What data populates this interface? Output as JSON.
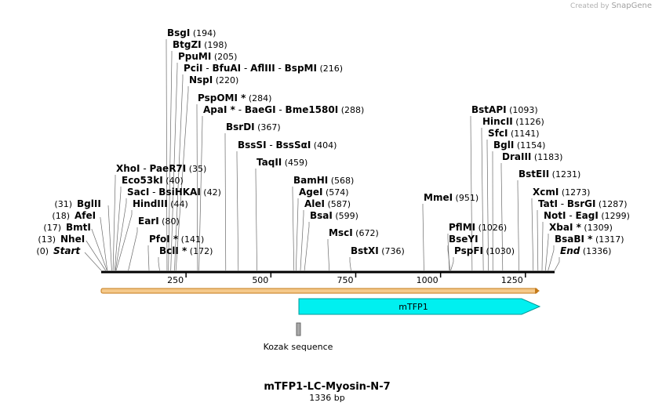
{
  "credit": {
    "prefix": "Created by",
    "brand": "SnapGene"
  },
  "title": "mTFP1-LC-Myosin-N-7",
  "length_label": "1336 bp",
  "total_bp": 1336,
  "ruler": {
    "ticks": [
      250,
      500,
      750,
      1000,
      1250
    ],
    "tick_labels": [
      "250",
      "500",
      "750",
      "1000",
      "1250"
    ]
  },
  "features": {
    "mtfp1": {
      "label": "mTFP1",
      "start": 587,
      "end": 1306
    },
    "kozak": {
      "label": "Kozak sequence",
      "start": 578,
      "end": 587
    }
  },
  "colors": {
    "backbone": "#000000",
    "ori_band": "#f5c98a",
    "ori_edge": "#c47a1a",
    "mtfp1_fill": "#00f0f0",
    "mtfp1_edge": "#009999",
    "kozak_fill": "#a8a8a8"
  },
  "sites_left": [
    {
      "name": "Start",
      "pos_label": "(0)",
      "pos": 0,
      "italic": true
    },
    {
      "name": "NheI",
      "pos_label": "(13)",
      "pos": 13
    },
    {
      "name": "BmtI",
      "pos_label": "(17)",
      "pos": 17
    },
    {
      "name": "AfeI",
      "pos_label": "(18)",
      "pos": 18
    },
    {
      "name": "BglII",
      "pos_label": "(31)",
      "pos": 31
    }
  ],
  "sites": [
    {
      "parts": [
        "BsgI"
      ],
      "pos_label": "(194)",
      "pos": 194
    },
    {
      "parts": [
        "BtgZI"
      ],
      "pos_label": "(198)",
      "pos": 198
    },
    {
      "parts": [
        "PpuMI"
      ],
      "pos_label": "(205)",
      "pos": 205
    },
    {
      "parts": [
        "PciI",
        "BfuAI",
        "AflIII",
        "BspMI"
      ],
      "pos_label": "(216)",
      "pos": 216
    },
    {
      "parts": [
        "NspI"
      ],
      "pos_label": "(220)",
      "pos": 220
    },
    {
      "parts": [
        "PspOMI *"
      ],
      "pos_label": "(284)",
      "pos": 284
    },
    {
      "parts": [
        "ApaI *",
        "BaeGI",
        "Bme1580I"
      ],
      "pos_label": "(288)",
      "pos": 288
    },
    {
      "parts": [
        "BsrDI"
      ],
      "pos_label": "(367)",
      "pos": 367
    },
    {
      "parts": [
        "BssSI",
        "BssSαI"
      ],
      "pos_label": "(404)",
      "pos": 404
    },
    {
      "parts": [
        "TaqII"
      ],
      "pos_label": "(459)",
      "pos": 459
    },
    {
      "parts": [
        "XhoI",
        "PaeR7I"
      ],
      "pos_label": "(35)",
      "pos": 35
    },
    {
      "parts": [
        "Eco53kI"
      ],
      "pos_label": "(40)",
      "pos": 40
    },
    {
      "parts": [
        "SacI",
        "BsiHKAI"
      ],
      "pos_label": "(42)",
      "pos": 42
    },
    {
      "parts": [
        "HindIII"
      ],
      "pos_label": "(44)",
      "pos": 44
    },
    {
      "parts": [
        "EarI"
      ],
      "pos_label": "(80)",
      "pos": 80
    },
    {
      "parts": [
        "PfoI *"
      ],
      "pos_label": "(141)",
      "pos": 141
    },
    {
      "parts": [
        "BclI *"
      ],
      "pos_label": "(172)",
      "pos": 172
    },
    {
      "parts": [
        "BamHI"
      ],
      "pos_label": "(568)",
      "pos": 568
    },
    {
      "parts": [
        "AgeI"
      ],
      "pos_label": "(574)",
      "pos": 574
    },
    {
      "parts": [
        "AleI"
      ],
      "pos_label": "(587)",
      "pos": 587
    },
    {
      "parts": [
        "BsaI"
      ],
      "pos_label": "(599)",
      "pos": 599
    },
    {
      "parts": [
        "MscI"
      ],
      "pos_label": "(672)",
      "pos": 672
    },
    {
      "parts": [
        "BstXI"
      ],
      "pos_label": "(736)",
      "pos": 736
    },
    {
      "parts": [
        "MmeI"
      ],
      "pos_label": "(951)",
      "pos": 951
    },
    {
      "parts": [
        "PflMI"
      ],
      "pos_label": "(1026)",
      "pos": 1026
    },
    {
      "parts": [
        "BseYI"
      ],
      "pos_label": "",
      "pos": 1028
    },
    {
      "parts": [
        "PspFI"
      ],
      "pos_label": "(1030)",
      "pos": 1030
    },
    {
      "parts": [
        "BstAPI"
      ],
      "pos_label": "(1093)",
      "pos": 1093
    },
    {
      "parts": [
        "HincII"
      ],
      "pos_label": "(1126)",
      "pos": 1126
    },
    {
      "parts": [
        "SfcI"
      ],
      "pos_label": "(1141)",
      "pos": 1141
    },
    {
      "parts": [
        "BglI"
      ],
      "pos_label": "(1154)",
      "pos": 1154
    },
    {
      "parts": [
        "DraIII"
      ],
      "pos_label": "(1183)",
      "pos": 1183
    },
    {
      "parts": [
        "BstEII"
      ],
      "pos_label": "(1231)",
      "pos": 1231
    },
    {
      "parts": [
        "XcmI"
      ],
      "pos_label": "(1273)",
      "pos": 1273
    },
    {
      "parts": [
        "TatI",
        "BsrGI"
      ],
      "pos_label": "(1287)",
      "pos": 1287
    },
    {
      "parts": [
        "NotI",
        "EagI"
      ],
      "pos_label": "(1299)",
      "pos": 1299
    },
    {
      "parts": [
        "XbaI *"
      ],
      "pos_label": "(1309)",
      "pos": 1309
    },
    {
      "parts": [
        "BsaBI *"
      ],
      "pos_label": "(1317)",
      "pos": 1317
    },
    {
      "parts": [
        "End"
      ],
      "pos_label": "(1336)",
      "pos": 1336,
      "italic": true
    }
  ]
}
